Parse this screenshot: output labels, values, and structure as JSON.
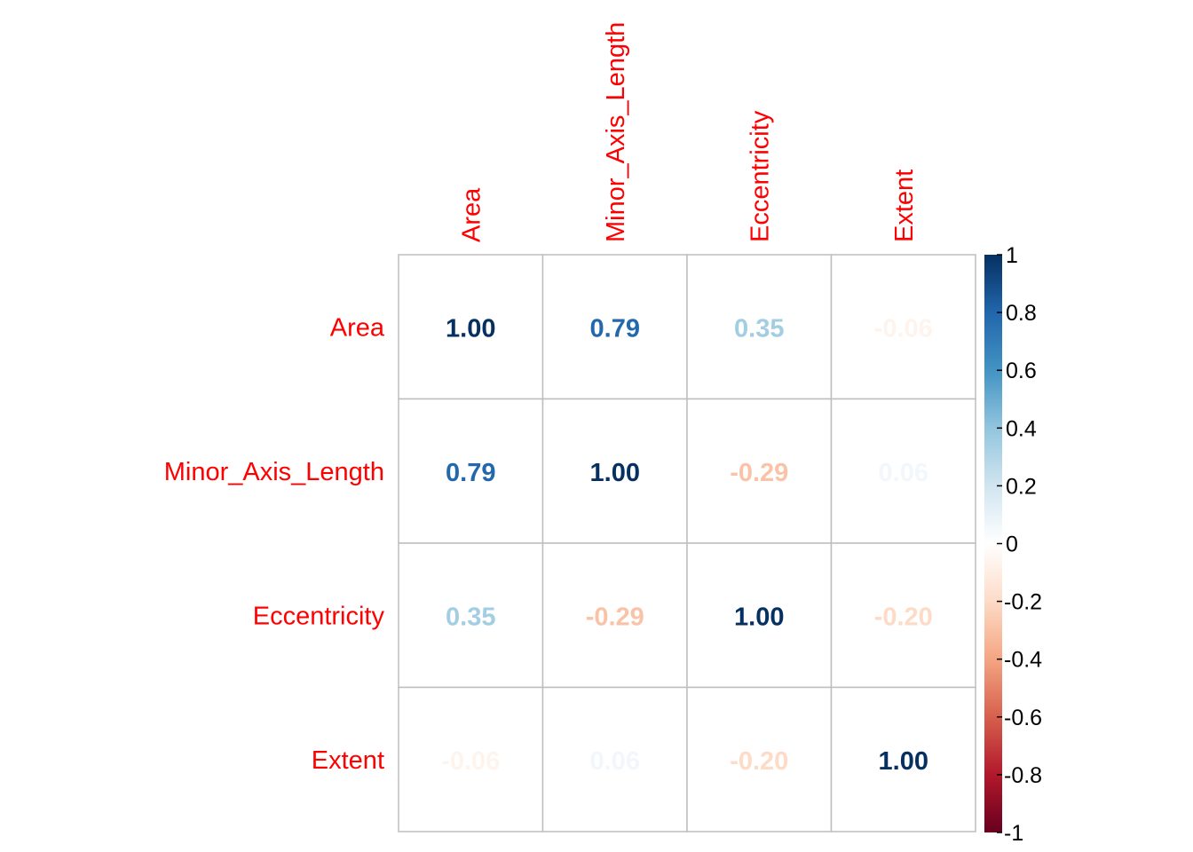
{
  "chart_data": {
    "type": "heatmap",
    "variables": [
      "Area",
      "Minor_Axis_Length",
      "Eccentricity",
      "Extent"
    ],
    "values": [
      [
        1.0,
        0.79,
        0.35,
        -0.06
      ],
      [
        0.79,
        1.0,
        -0.29,
        0.06
      ],
      [
        0.35,
        -0.29,
        1.0,
        -0.2
      ],
      [
        -0.06,
        0.06,
        -0.2,
        1.0
      ]
    ],
    "value_labels": [
      [
        "1.00",
        "0.79",
        "0.35",
        "-0.06"
      ],
      [
        "0.79",
        "1.00",
        "-0.29",
        "0.06"
      ],
      [
        "0.35",
        "-0.29",
        "1.00",
        "-0.20"
      ],
      [
        "-0.06",
        "0.06",
        "-0.20",
        "1.00"
      ]
    ],
    "colorbar": {
      "range": [
        -1,
        1
      ],
      "ticks": [
        "1",
        "0.8",
        "0.6",
        "0.4",
        "0.2",
        "0",
        "-0.2",
        "-0.4",
        "-0.6",
        "-0.8",
        "-1"
      ],
      "tick_values": [
        1,
        0.8,
        0.6,
        0.4,
        0.2,
        0,
        -0.2,
        -0.4,
        -0.6,
        -0.8,
        -1
      ],
      "colors": [
        "#67001F",
        "#B2182B",
        "#D6604D",
        "#F4A582",
        "#FDDBC7",
        "#FFFFFF",
        "#D1E5F0",
        "#92C5DE",
        "#4393C3",
        "#2166AC",
        "#053061"
      ]
    },
    "label_color": "#FF0000",
    "grid_color": "#BEBEBE",
    "title": "",
    "xlabel": "",
    "ylabel": ""
  }
}
